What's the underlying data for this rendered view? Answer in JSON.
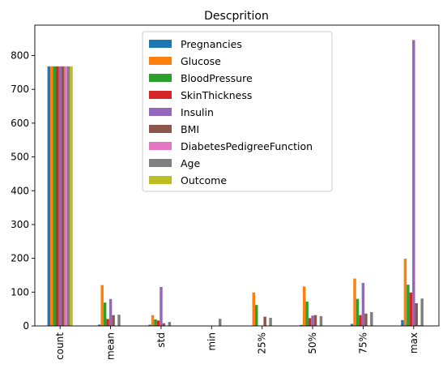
{
  "chart_data": {
    "type": "bar",
    "title": "Descprition",
    "xlabel": "",
    "ylabel": "",
    "categories": [
      "count",
      "mean",
      "std",
      "min",
      "25%",
      "50%",
      "75%",
      "max"
    ],
    "ylim": [
      0,
      890
    ],
    "yticks": [
      0,
      100,
      200,
      300,
      400,
      500,
      600,
      700,
      800
    ],
    "grid": false,
    "legend_position": "top-center",
    "series": [
      {
        "name": "Pregnancies",
        "color": "#1f77b4",
        "values": [
          768,
          3.8,
          3.4,
          0,
          1,
          3,
          6,
          17
        ]
      },
      {
        "name": "Glucose",
        "color": "#ff7f0e",
        "values": [
          768,
          120.9,
          32.0,
          0,
          99,
          117,
          140.25,
          199
        ]
      },
      {
        "name": "BloodPressure",
        "color": "#2ca02c",
        "values": [
          768,
          69.1,
          19.4,
          0,
          62,
          72,
          80,
          122
        ]
      },
      {
        "name": "SkinThickness",
        "color": "#d62728",
        "values": [
          768,
          20.5,
          16.0,
          0,
          0,
          23,
          32,
          99
        ]
      },
      {
        "name": "Insulin",
        "color": "#9467bd",
        "values": [
          768,
          79.8,
          115.2,
          0,
          0,
          30.5,
          127.25,
          846
        ]
      },
      {
        "name": "BMI",
        "color": "#8c564b",
        "values": [
          768,
          32.0,
          7.9,
          0,
          27.3,
          32,
          36.6,
          67.1
        ]
      },
      {
        "name": "DiabetesPedigreeFunction",
        "color": "#e377c2",
        "values": [
          768,
          0.47,
          0.33,
          0.08,
          0.24,
          0.37,
          0.63,
          2.42
        ]
      },
      {
        "name": "Age",
        "color": "#7f7f7f",
        "values": [
          768,
          33.2,
          11.8,
          21,
          24,
          29,
          41,
          81
        ]
      },
      {
        "name": "Outcome",
        "color": "#bcbd22",
        "values": [
          768,
          0.35,
          0.48,
          0,
          0,
          0,
          1,
          1
        ]
      }
    ]
  }
}
